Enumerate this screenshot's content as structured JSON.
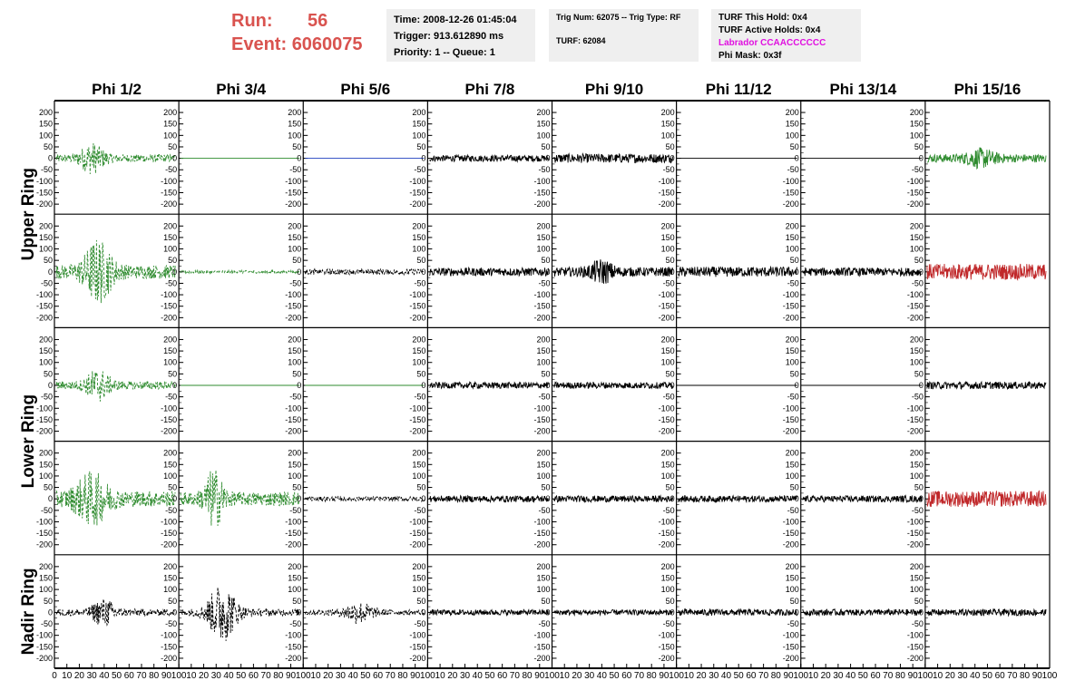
{
  "header": {
    "run_label": "Run:",
    "run_value": "56",
    "event_label": "Event:",
    "event_value": "6060075"
  },
  "info_box_1": {
    "time": "Time: 2008-12-26 01:45:04",
    "trigger": "Trigger: 913.612890 ms",
    "priority": "Priority: 1 -- Queue: 1"
  },
  "info_box_2": {
    "trig": "Trig Num: 62075 -- Trig Type: RF",
    "turf": "TURF: 62084"
  },
  "info_box_3": {
    "this_hold": "TURF This Hold: 0x4",
    "active_holds": "TURF Active Holds: 0x4",
    "labrador": "Labrador CCAACCCCCC",
    "phi_mask": "Phi Mask: 0x3f"
  },
  "colors": {
    "run_text": "#d9534f",
    "labrador_text": "#e010e0",
    "green": "#2e8b2e",
    "red": "#c0282a",
    "blue": "#1f3fbf",
    "black": "#000000"
  },
  "chart_data": {
    "type": "line",
    "columns": [
      "Phi 1/2",
      "Phi 3/4",
      "Phi 5/6",
      "Phi 7/8",
      "Phi 9/10",
      "Phi 11/12",
      "Phi 13/14",
      "Phi 15/16"
    ],
    "row_groups": [
      "Upper Ring",
      "Lower Ring",
      "Nadir Ring"
    ],
    "y_ticks": [
      200,
      150,
      100,
      50,
      0,
      -50,
      -100,
      -150,
      -200
    ],
    "ylim": [
      -220,
      220
    ],
    "xlim": [
      0,
      100
    ],
    "x_ticks": [
      0,
      10,
      20,
      30,
      40,
      50,
      60,
      70,
      80,
      90,
      100
    ],
    "x_tick_labels_first": [
      "0",
      "10",
      "20",
      "30",
      "40",
      "50",
      "60",
      "70",
      "80",
      "90",
      "100"
    ],
    "x_tick_labels_other": [
      "",
      "10",
      "20",
      "30",
      "40",
      "50",
      "60",
      "70",
      "80",
      "90",
      "100"
    ],
    "panels": [
      [
        {
          "color": "green",
          "dashed": true,
          "amp": 18,
          "burst": {
            "center": 30,
            "width": 10,
            "amp": 55
          }
        },
        {
          "color": "green",
          "dashed": false,
          "amp": 0
        },
        {
          "color": "blue",
          "dashed": false,
          "amp": 0
        },
        {
          "color": "black",
          "dashed": false,
          "amp": 14
        },
        {
          "color": "black",
          "dashed": false,
          "amp": 20
        },
        {
          "color": "black",
          "dashed": false,
          "amp": 0
        },
        {
          "color": "black",
          "dashed": false,
          "amp": 0
        },
        {
          "color": "green",
          "dashed": false,
          "amp": 18,
          "burst": {
            "center": 45,
            "width": 12,
            "amp": 30
          }
        }
      ],
      [
        {
          "color": "green",
          "dashed": true,
          "amp": 30,
          "burst": {
            "center": 35,
            "width": 12,
            "amp": 120
          }
        },
        {
          "color": "green",
          "dashed": true,
          "amp": 6
        },
        {
          "color": "black",
          "dashed": true,
          "amp": 12
        },
        {
          "color": "black",
          "dashed": false,
          "amp": 18
        },
        {
          "color": "black",
          "dashed": false,
          "amp": 20,
          "burst": {
            "center": 40,
            "width": 10,
            "amp": 40
          }
        },
        {
          "color": "black",
          "dashed": false,
          "amp": 22
        },
        {
          "color": "black",
          "dashed": false,
          "amp": 18
        },
        {
          "color": "red",
          "dashed": false,
          "amp": 35
        }
      ],
      [
        {
          "color": "green",
          "dashed": true,
          "amp": 18,
          "burst": {
            "center": 35,
            "width": 10,
            "amp": 60
          }
        },
        {
          "color": "green",
          "dashed": false,
          "amp": 0
        },
        {
          "color": "green",
          "dashed": false,
          "amp": 0
        },
        {
          "color": "black",
          "dashed": false,
          "amp": 14
        },
        {
          "color": "black",
          "dashed": false,
          "amp": 14
        },
        {
          "color": "black",
          "dashed": false,
          "amp": 0
        },
        {
          "color": "black",
          "dashed": false,
          "amp": 0
        },
        {
          "color": "black",
          "dashed": false,
          "amp": 16
        }
      ],
      [
        {
          "color": "green",
          "dashed": true,
          "amp": 35,
          "burst": {
            "center": 30,
            "width": 14,
            "amp": 90
          }
        },
        {
          "color": "green",
          "dashed": true,
          "amp": 30,
          "burst": {
            "center": 28,
            "width": 8,
            "amp": 110
          }
        },
        {
          "color": "black",
          "dashed": true,
          "amp": 10
        },
        {
          "color": "black",
          "dashed": false,
          "amp": 14
        },
        {
          "color": "black",
          "dashed": false,
          "amp": 14
        },
        {
          "color": "black",
          "dashed": false,
          "amp": 14
        },
        {
          "color": "black",
          "dashed": false,
          "amp": 14
        },
        {
          "color": "red",
          "dashed": false,
          "amp": 35
        }
      ],
      [
        {
          "color": "black",
          "dashed": true,
          "amp": 15,
          "burst": {
            "center": 40,
            "width": 10,
            "amp": 50
          }
        },
        {
          "color": "black",
          "dashed": true,
          "amp": 15,
          "burst": {
            "center": 35,
            "width": 12,
            "amp": 120
          }
        },
        {
          "color": "black",
          "dashed": true,
          "amp": 12,
          "burst": {
            "center": 45,
            "width": 12,
            "amp": 40
          }
        },
        {
          "color": "black",
          "dashed": false,
          "amp": 12
        },
        {
          "color": "black",
          "dashed": false,
          "amp": 12
        },
        {
          "color": "black",
          "dashed": false,
          "amp": 14
        },
        {
          "color": "black",
          "dashed": false,
          "amp": 14
        },
        {
          "color": "black",
          "dashed": false,
          "amp": 14
        }
      ]
    ]
  }
}
